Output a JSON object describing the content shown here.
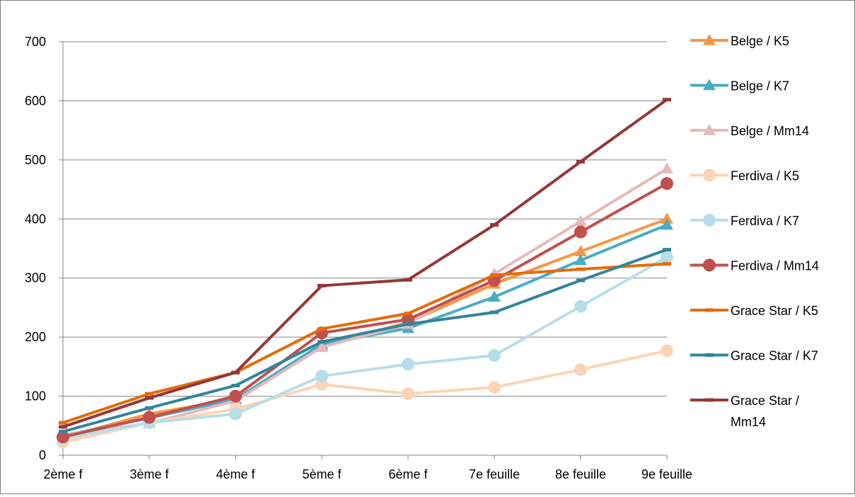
{
  "chart_data": {
    "type": "line",
    "categories": [
      "2ème f",
      "3ème f",
      "4ème f",
      "5ème f",
      "6ème f",
      "7e feuille",
      "8e feuille",
      "9e feuille"
    ],
    "ylim": [
      0,
      700
    ],
    "yticks": [
      "0",
      "100",
      "200",
      "300",
      "400",
      "500",
      "600",
      "700"
    ],
    "grid": "horizontal",
    "legend_position": "right",
    "series": [
      {
        "name": "Belge / K5",
        "color": "#F79646",
        "marker": "triangle",
        "values": [
          30,
          70,
          95,
          185,
          225,
          290,
          345,
          400
        ]
      },
      {
        "name": "Belge / K7",
        "color": "#4BACC6",
        "marker": "triangle",
        "values": [
          33,
          63,
          95,
          188,
          215,
          268,
          330,
          390
        ]
      },
      {
        "name": "Belge / Mm14",
        "color": "#E6B9B8",
        "marker": "triangle",
        "values": [
          35,
          54,
          92,
          183,
          222,
          307,
          396,
          485
        ]
      },
      {
        "name": "Ferdiva / K5",
        "color": "#FCD5B5",
        "marker": "circle",
        "values": [
          22,
          55,
          78,
          120,
          104,
          115,
          145,
          177
        ]
      },
      {
        "name": "Ferdiva / K7",
        "color": "#B7DEE8",
        "marker": "circle",
        "values": [
          28,
          55,
          70,
          134,
          154,
          169,
          252,
          335
        ]
      },
      {
        "name": "Ferdiva / Mm14",
        "color": "#C0504D",
        "marker": "circle",
        "values": [
          31,
          64,
          100,
          207,
          230,
          296,
          378,
          460
        ]
      },
      {
        "name": "Grace Star / K5",
        "color": "#E46C0A",
        "marker": "dash",
        "values": [
          55,
          104,
          140,
          214,
          240,
          305,
          315,
          324
        ]
      },
      {
        "name": "Grace Star / K7",
        "color": "#31859C",
        "marker": "dash",
        "values": [
          40,
          80,
          118,
          192,
          222,
          242,
          296,
          348
        ]
      },
      {
        "name": "Grace Star / Mm14",
        "legend_lines": [
          "Grace Star /",
          "Mm14"
        ],
        "color": "#953735",
        "marker": "dash",
        "values": [
          48,
          97,
          140,
          287,
          297,
          390,
          497,
          602
        ]
      }
    ]
  }
}
